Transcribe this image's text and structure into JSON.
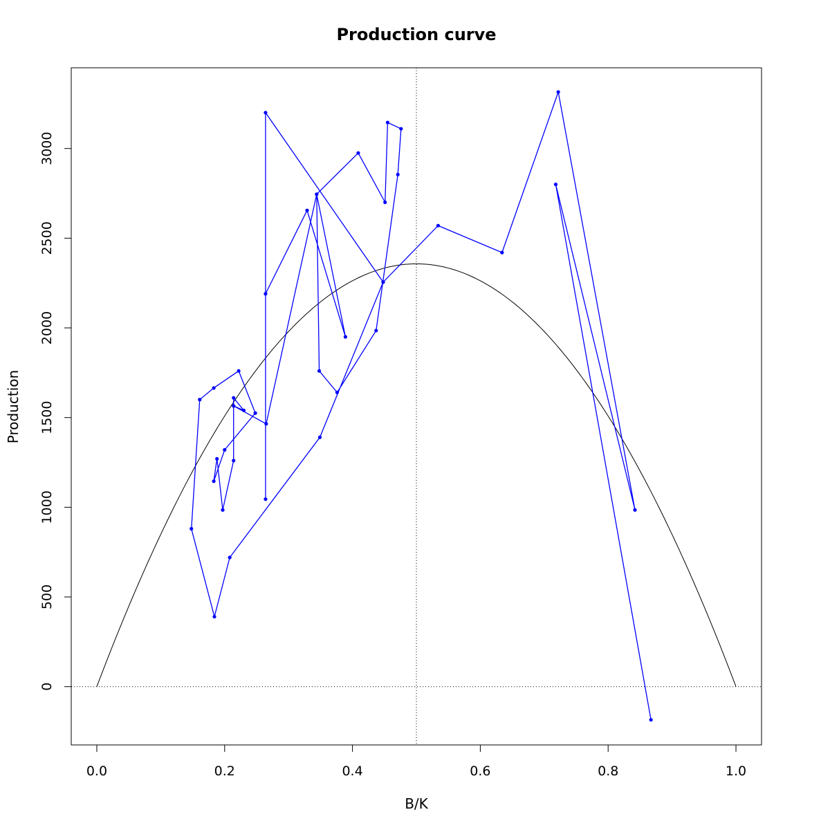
{
  "chart_data": {
    "type": "line",
    "title": "Production curve",
    "xlabel": "B/K",
    "ylabel": "Production",
    "xlim": [
      -0.04,
      1.04
    ],
    "ylim": [
      -325,
      3450
    ],
    "x_ticks": [
      "0.0",
      "0.2",
      "0.4",
      "0.6",
      "0.8",
      "1.0"
    ],
    "y_ticks": [
      "0",
      "500",
      "1000",
      "1500",
      "2000",
      "2500",
      "3000"
    ],
    "x_tick_values": [
      0,
      0.2,
      0.4,
      0.6,
      0.8,
      1.0
    ],
    "y_tick_values": [
      0,
      500,
      1000,
      1500,
      2000,
      2500,
      3000
    ],
    "grid": false,
    "reference_lines": {
      "vertical_x": 0.5,
      "horizontal_y": 0
    },
    "curve": {
      "description": "parabola",
      "rmax": 9426,
      "peak_x": 0.5,
      "peak_y": 2357,
      "color": "#000000"
    },
    "series": [
      {
        "color": "#0000ff",
        "x": [
          0.867,
          0.718,
          0.842,
          0.722,
          0.634,
          0.534,
          0.448,
          0.264,
          0.264,
          0.264,
          0.329,
          0.389,
          0.344,
          0.409,
          0.451,
          0.455,
          0.476,
          0.471,
          0.437,
          0.376,
          0.348,
          0.344,
          0.265,
          0.214,
          0.23,
          0.214,
          0.214,
          0.197,
          0.188,
          0.183,
          0.2,
          0.248,
          0.222,
          0.183,
          0.161,
          0.148,
          0.184,
          0.208,
          0.349,
          0.448
        ],
        "y": [
          -185,
          2800,
          985,
          3315,
          2420,
          2570,
          2255,
          3200,
          1045,
          2190,
          2655,
          1950,
          2745,
          2975,
          2700,
          3145,
          3110,
          2855,
          1985,
          1640,
          1760,
          2745,
          1465,
          1565,
          1540,
          1610,
          1260,
          985,
          1270,
          1145,
          1320,
          1525,
          1760,
          1665,
          1600,
          880,
          390,
          720,
          1390,
          2255
        ]
      }
    ]
  }
}
